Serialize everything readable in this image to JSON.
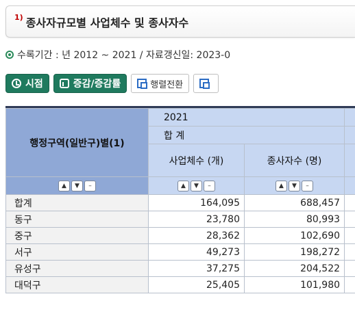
{
  "title": {
    "number": "1)",
    "text": "종사자규모별 사업체수 및 종사자수"
  },
  "period": {
    "text": "수록기간 : 년 2012 ~ 2021 / 자료갱신일: 2023-0"
  },
  "toolbar": {
    "time_label": "시점",
    "change_label": "증감/증감률",
    "pivot_label": "행렬전환"
  },
  "table": {
    "row_header": "행정구역(일반구)별(1)",
    "year": "2021",
    "total_group": "합 계",
    "columns": [
      "사업체수 (개)",
      "종사자수 (명)"
    ],
    "rows": [
      {
        "label": "합계",
        "values": [
          "164,095",
          "688,457"
        ]
      },
      {
        "label": "동구",
        "values": [
          "23,780",
          "80,993"
        ]
      },
      {
        "label": "중구",
        "values": [
          "28,362",
          "102,690"
        ]
      },
      {
        "label": "서구",
        "values": [
          "49,273",
          "198,272"
        ]
      },
      {
        "label": "유성구",
        "values": [
          "37,275",
          "204,522"
        ]
      },
      {
        "label": "대덕구",
        "values": [
          "25,405",
          "101,980"
        ]
      }
    ]
  }
}
